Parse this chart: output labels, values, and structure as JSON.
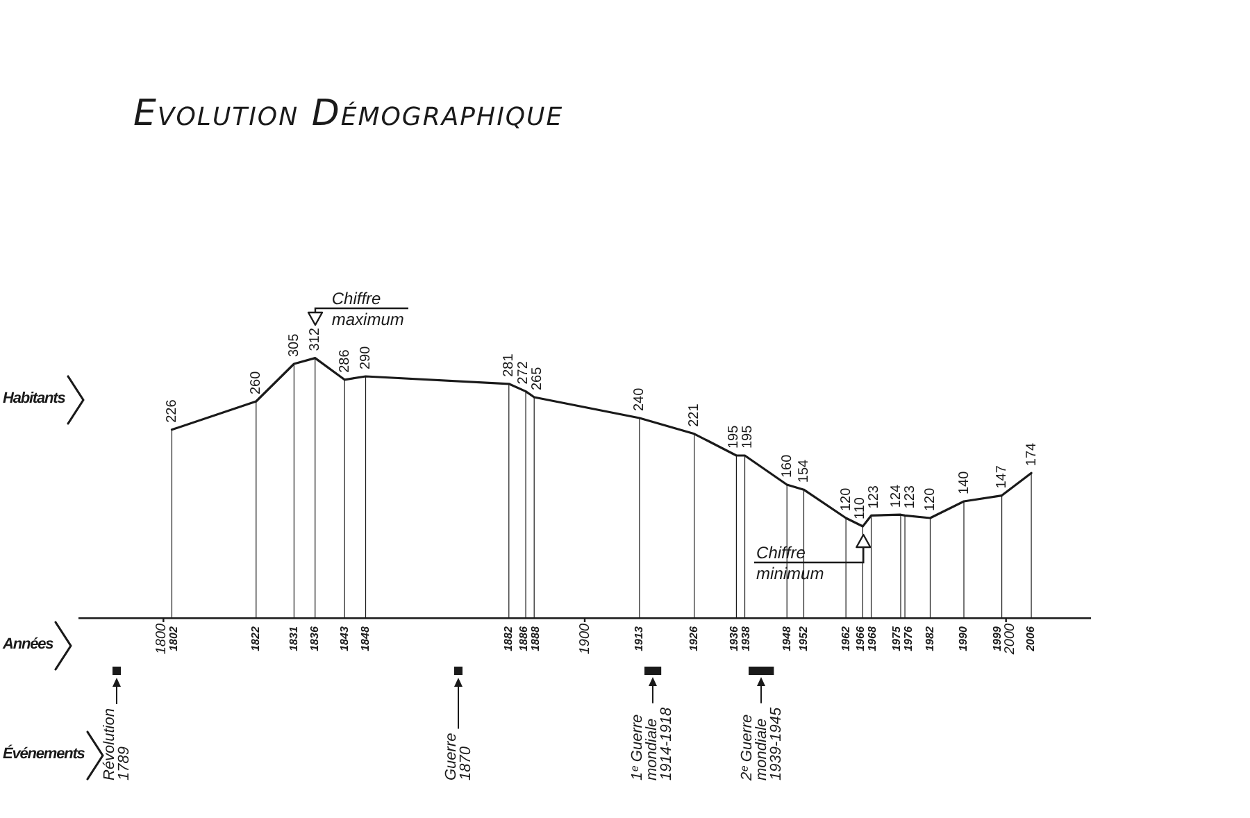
{
  "chart_data": {
    "type": "line",
    "title": "Evolution Démographique",
    "xlabel": "Années",
    "ylabel": "Habitants",
    "x": [
      1802,
      1822,
      1831,
      1836,
      1843,
      1848,
      1882,
      1886,
      1888,
      1913,
      1926,
      1936,
      1938,
      1948,
      1952,
      1962,
      1966,
      1968,
      1975,
      1976,
      1982,
      1990,
      1999,
      2006
    ],
    "values": [
      226,
      260,
      305,
      312,
      286,
      290,
      281,
      272,
      265,
      240,
      221,
      195,
      195,
      160,
      154,
      120,
      110,
      123,
      124,
      123,
      120,
      140,
      147,
      174
    ],
    "color": "#1a1a1a",
    "xlim": [
      1780,
      2020
    ],
    "xticks": [
      1800,
      1802,
      1822,
      1831,
      1836,
      1843,
      1848,
      1882,
      1886,
      1888,
      1900,
      1913,
      1926,
      1936,
      1938,
      1948,
      1952,
      1962,
      1966,
      1968,
      1975,
      1976,
      1982,
      1990,
      1999,
      2000,
      2006
    ],
    "tick_labels": "x",
    "grid": "x",
    "legend": false,
    "marker": "none",
    "line_style": "solid",
    "data_labels": true,
    "ref_lines": [
      {
        "axis": "x",
        "value": 1789,
        "label": "Révolution 1789"
      },
      {
        "axis": "x",
        "value": 1870,
        "label": "Guerre 1870"
      }
    ],
    "annotations": [
      "Événements",
      "1ᵉ Guerre mondiale 1914-1918",
      "2ᵉ Guerre mondiale 1939-1945",
      {
        "text": "Chiffre maximum",
        "x": 1836,
        "y": 312
      },
      {
        "text": "Chiffre minimum",
        "x": 1966,
        "y": 110
      }
    ]
  }
}
